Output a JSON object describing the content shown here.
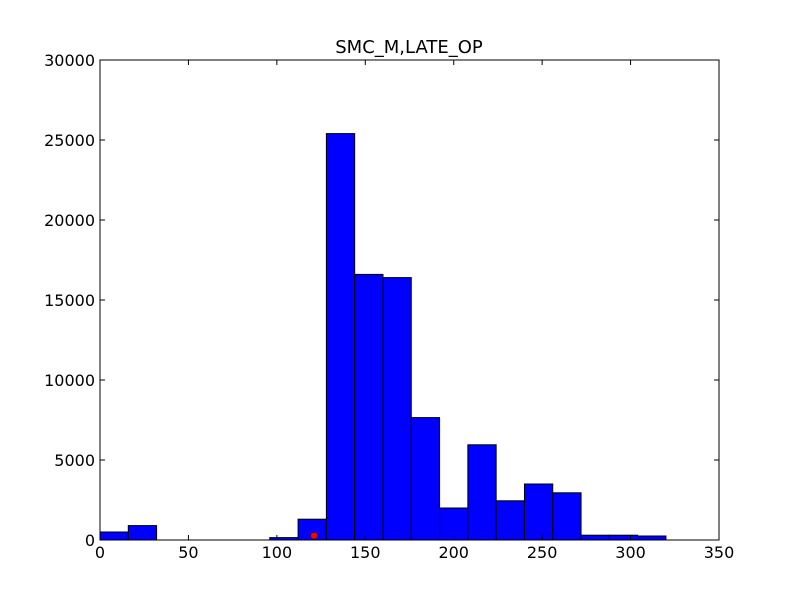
{
  "chart_data": {
    "type": "bar",
    "title": "SMC_M,LATE_OP",
    "xlabel": "",
    "ylabel": "",
    "xlim": [
      0,
      350
    ],
    "ylim": [
      0,
      30000
    ],
    "x_ticks": [
      "0",
      "50",
      "100",
      "150",
      "200",
      "250",
      "300",
      "350"
    ],
    "y_ticks": [
      "0",
      "5000",
      "10000",
      "15000",
      "20000",
      "25000",
      "30000"
    ],
    "grid": false,
    "bar_color": "#0000ff",
    "bins": [
      {
        "x0": 0,
        "x1": 16,
        "value": 500
      },
      {
        "x0": 16,
        "x1": 32,
        "value": 900
      },
      {
        "x0": 32,
        "x1": 48,
        "value": 0
      },
      {
        "x0": 48,
        "x1": 64,
        "value": 0
      },
      {
        "x0": 64,
        "x1": 80,
        "value": 0
      },
      {
        "x0": 80,
        "x1": 96,
        "value": 0
      },
      {
        "x0": 96,
        "x1": 112,
        "value": 150
      },
      {
        "x0": 112,
        "x1": 128,
        "value": 1300
      },
      {
        "x0": 128,
        "x1": 144,
        "value": 25400
      },
      {
        "x0": 144,
        "x1": 160,
        "value": 16600
      },
      {
        "x0": 160,
        "x1": 176,
        "value": 16400
      },
      {
        "x0": 176,
        "x1": 192,
        "value": 7650
      },
      {
        "x0": 192,
        "x1": 208,
        "value": 2000
      },
      {
        "x0": 208,
        "x1": 224,
        "value": 5950
      },
      {
        "x0": 224,
        "x1": 240,
        "value": 2450
      },
      {
        "x0": 240,
        "x1": 256,
        "value": 3500
      },
      {
        "x0": 256,
        "x1": 272,
        "value": 2950
      },
      {
        "x0": 272,
        "x1": 288,
        "value": 300
      },
      {
        "x0": 288,
        "x1": 304,
        "value": 300
      },
      {
        "x0": 304,
        "x1": 320,
        "value": 250
      }
    ],
    "marker": {
      "x": 121,
      "y": 150,
      "color": "#ff0000"
    }
  }
}
